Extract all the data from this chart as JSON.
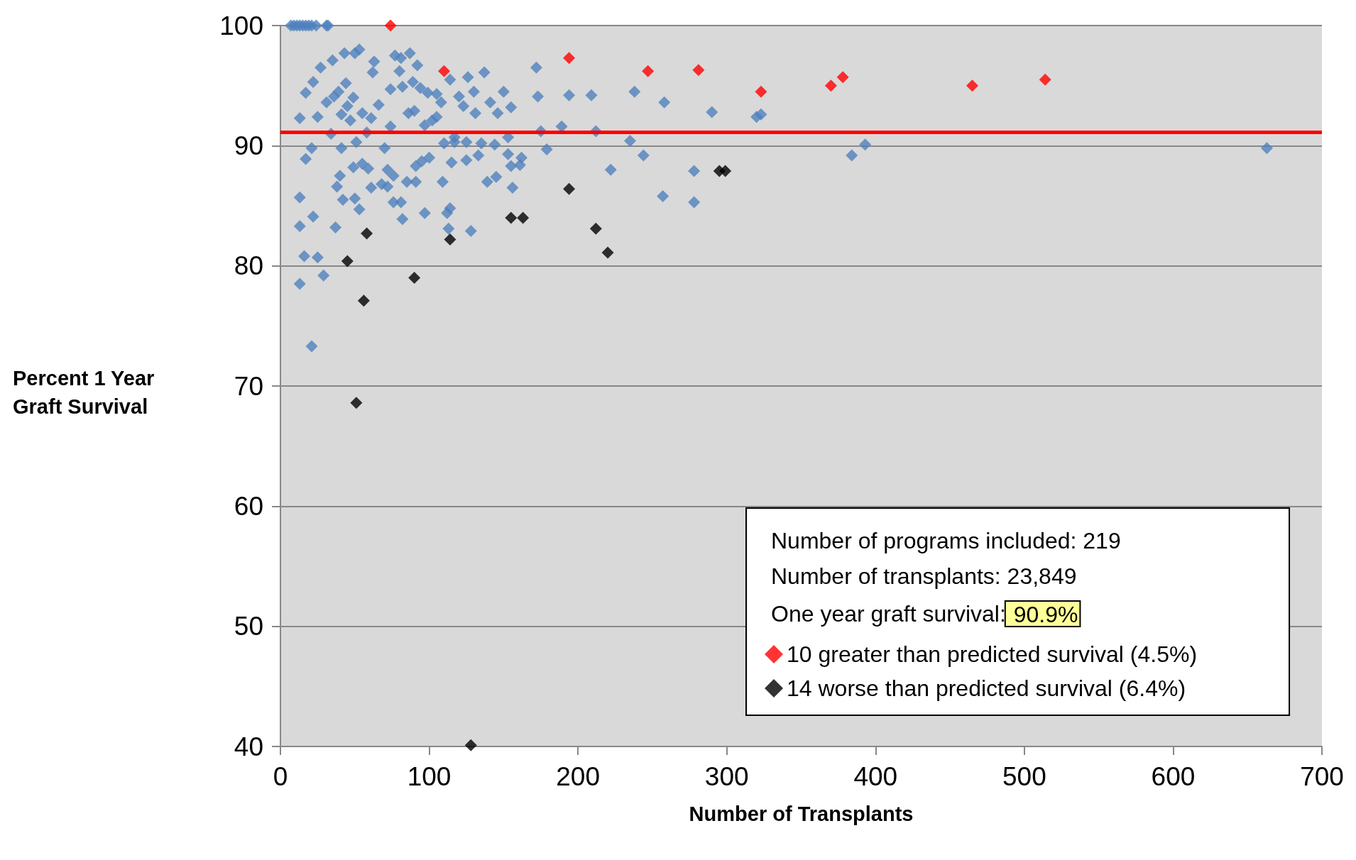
{
  "chart_data": {
    "type": "scatter",
    "xlabel": "Number of Transplants",
    "ylabel": "Percent 1 Year\nGraft Survival",
    "xlim": [
      0,
      700
    ],
    "xticks": [
      0,
      100,
      200,
      300,
      400,
      500,
      600,
      700
    ],
    "ylim": [
      40,
      100
    ],
    "yticks": [
      40,
      50,
      60,
      70,
      80,
      90,
      100
    ],
    "grid": "y",
    "marker": "diamond",
    "legend": "bottom right",
    "annotations": [
      "Number of programs included: 219",
      "Number of transplants: 23,849",
      "One year graft survival: 90.9%"
    ],
    "ref_lines": [
      {
        "axis": "y",
        "value": 91.1,
        "color": "#ff0000"
      }
    ],
    "series": [
      {
        "color": "#4f81bd",
        "x": [
          7,
          9,
          11,
          13,
          15,
          17,
          19,
          21,
          24,
          31,
          32,
          663,
          384,
          393,
          323,
          320,
          290,
          278,
          278,
          257,
          258,
          244,
          238,
          235,
          222,
          212,
          209,
          194,
          189,
          179,
          175,
          173,
          172,
          162,
          161,
          156,
          155,
          153,
          153,
          155,
          150,
          146,
          144,
          141,
          137,
          139,
          145,
          135,
          133,
          131,
          130,
          128,
          126,
          125,
          125,
          123,
          120,
          117,
          117,
          115,
          114,
          112,
          113,
          114,
          110,
          109,
          108,
          105,
          105,
          102,
          100,
          99,
          97,
          97,
          94,
          95,
          92,
          91,
          91,
          90,
          89,
          87,
          86,
          85,
          82,
          82,
          81,
          81,
          80,
          77,
          76,
          76,
          74,
          74,
          72,
          72,
          70,
          68,
          66,
          63,
          62,
          61,
          61,
          59,
          58,
          55,
          55,
          53,
          53,
          50,
          51,
          49,
          49,
          50,
          47,
          45,
          44,
          43,
          42,
          41,
          41,
          40,
          38,
          39,
          37,
          35,
          36,
          34,
          31,
          29,
          27,
          25,
          25,
          22,
          21,
          22,
          21,
          17,
          17,
          16,
          13,
          13,
          13,
          13
        ],
        "values": [
          100,
          100,
          100,
          100,
          100,
          100,
          100,
          100,
          100,
          100,
          100,
          89.8,
          89.2,
          90.1,
          92.6,
          92.4,
          92.8,
          87.9,
          85.3,
          85.8,
          93.6,
          89.2,
          94.5,
          90.4,
          88.0,
          91.2,
          94.2,
          94.2,
          91.6,
          89.7,
          91.2,
          94.1,
          96.5,
          89.0,
          88.4,
          86.5,
          93.2,
          89.3,
          90.7,
          88.3,
          94.5,
          92.7,
          90.1,
          93.6,
          96.1,
          87.0,
          87.4,
          90.2,
          89.2,
          92.7,
          94.5,
          82.9,
          95.7,
          88.8,
          90.3,
          93.3,
          94.1,
          90.7,
          90.3,
          88.6,
          84.8,
          84.4,
          83.1,
          95.5,
          90.2,
          87.0,
          93.6,
          92.4,
          94.3,
          92.1,
          89.0,
          94.4,
          84.4,
          91.7,
          94.8,
          88.7,
          96.7,
          88.3,
          87.0,
          92.9,
          95.3,
          97.7,
          92.7,
          87.0,
          94.9,
          83.9,
          97.3,
          85.3,
          96.2,
          97.5,
          87.5,
          85.3,
          94.7,
          91.6,
          88.0,
          86.6,
          89.8,
          86.8,
          93.4,
          97.0,
          96.1,
          92.3,
          86.5,
          88.1,
          91.1,
          88.5,
          92.7,
          84.7,
          98.0,
          97.7,
          90.3,
          88.2,
          94.0,
          85.6,
          92.1,
          93.3,
          95.2,
          97.7,
          85.5,
          89.8,
          92.6,
          87.5,
          86.6,
          94.5,
          83.2,
          97.1,
          94.1,
          91.0,
          93.6,
          79.2,
          96.5,
          92.4,
          80.7,
          84.1,
          89.8,
          95.3,
          73.3,
          88.9,
          94.4,
          80.8,
          83.3,
          78.5,
          85.7,
          92.3
        ]
      },
      {
        "name": "10 greater than predicted survival (4.5%)",
        "color": "#ff0000",
        "x": [
          74,
          110,
          194,
          247,
          281,
          323,
          370,
          378,
          465,
          514
        ],
        "values": [
          100,
          96.2,
          97.3,
          96.2,
          96.3,
          94.5,
          95.0,
          95.7,
          95.0,
          95.5
        ]
      },
      {
        "name": "14 worse than predicted survival (6.4%)",
        "color": "#000000",
        "x": [
          45,
          58,
          56,
          51,
          90,
          114,
          128,
          155,
          163,
          194,
          212,
          220,
          295,
          299
        ],
        "values": [
          80.4,
          82.7,
          77.1,
          68.6,
          79.0,
          82.2,
          40.1,
          84.0,
          84.0,
          86.4,
          83.1,
          81.1,
          87.9,
          87.9
        ]
      }
    ]
  }
}
